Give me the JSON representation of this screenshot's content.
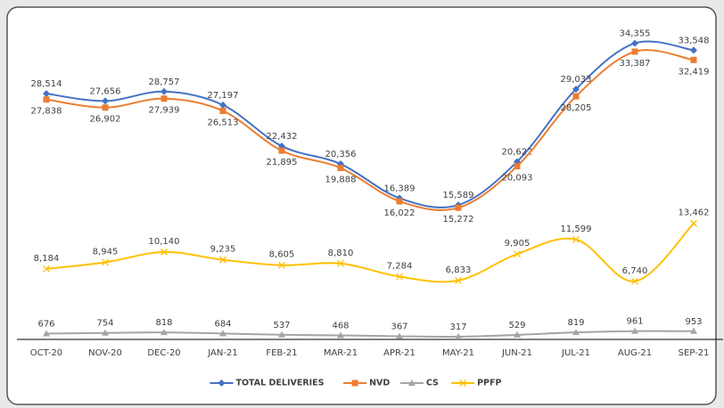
{
  "chart_data": {
    "type": "line",
    "categories": [
      "OCT-20",
      "NOV-20",
      "DEC-20",
      "JAN-21",
      "FEB-21",
      "MAR-21",
      "APR-21",
      "MAY-21",
      "JUN-21",
      "JUL-21",
      "AUG-21",
      "SEP-21"
    ],
    "ylim": [
      0,
      37000
    ],
    "series": [
      {
        "name": "TOTAL DELIVERIES",
        "color": "#4472c4",
        "marker": "diamond",
        "values": [
          28514,
          27656,
          28757,
          27197,
          22432,
          20356,
          16389,
          15589,
          20622,
          29033,
          34355,
          33548
        ],
        "value_labels": [
          "28,514",
          "27,656",
          "28,757",
          "27,197",
          "22,432",
          "20,356",
          "16,389",
          "15,589",
          "20,622",
          "29,033",
          "34,355",
          "33,548"
        ]
      },
      {
        "name": "NVD",
        "color": "#ed7d31",
        "marker": "square",
        "values": [
          27838,
          26902,
          27939,
          26513,
          21895,
          19888,
          16022,
          15272,
          20093,
          28205,
          33387,
          32419
        ],
        "value_labels": [
          "27,838",
          "26,902",
          "27,939",
          "26,513",
          "21,895",
          "19,888",
          "16,022",
          "15,272",
          "20,093",
          "28,205",
          "33,387",
          "32,419"
        ]
      },
      {
        "name": "CS",
        "color": "#a5a5a5",
        "marker": "triangle",
        "values": [
          676,
          754,
          818,
          684,
          537,
          468,
          367,
          317,
          529,
          819,
          961,
          953
        ]
      },
      {
        "name": "PPFP",
        "color": "#ffc000",
        "marker": "x",
        "values": [
          8184,
          8945,
          10140,
          9235,
          8605,
          8810,
          7284,
          6833,
          9905,
          11599,
          6740,
          13462
        ],
        "value_labels": [
          "8,184",
          "8,945",
          "10,140",
          "9,235",
          "8,605",
          "8,810",
          "7,284",
          "6,833",
          "9,905",
          "11,599",
          "6,740",
          "13,462"
        ]
      }
    ],
    "legend": "bottom"
  }
}
